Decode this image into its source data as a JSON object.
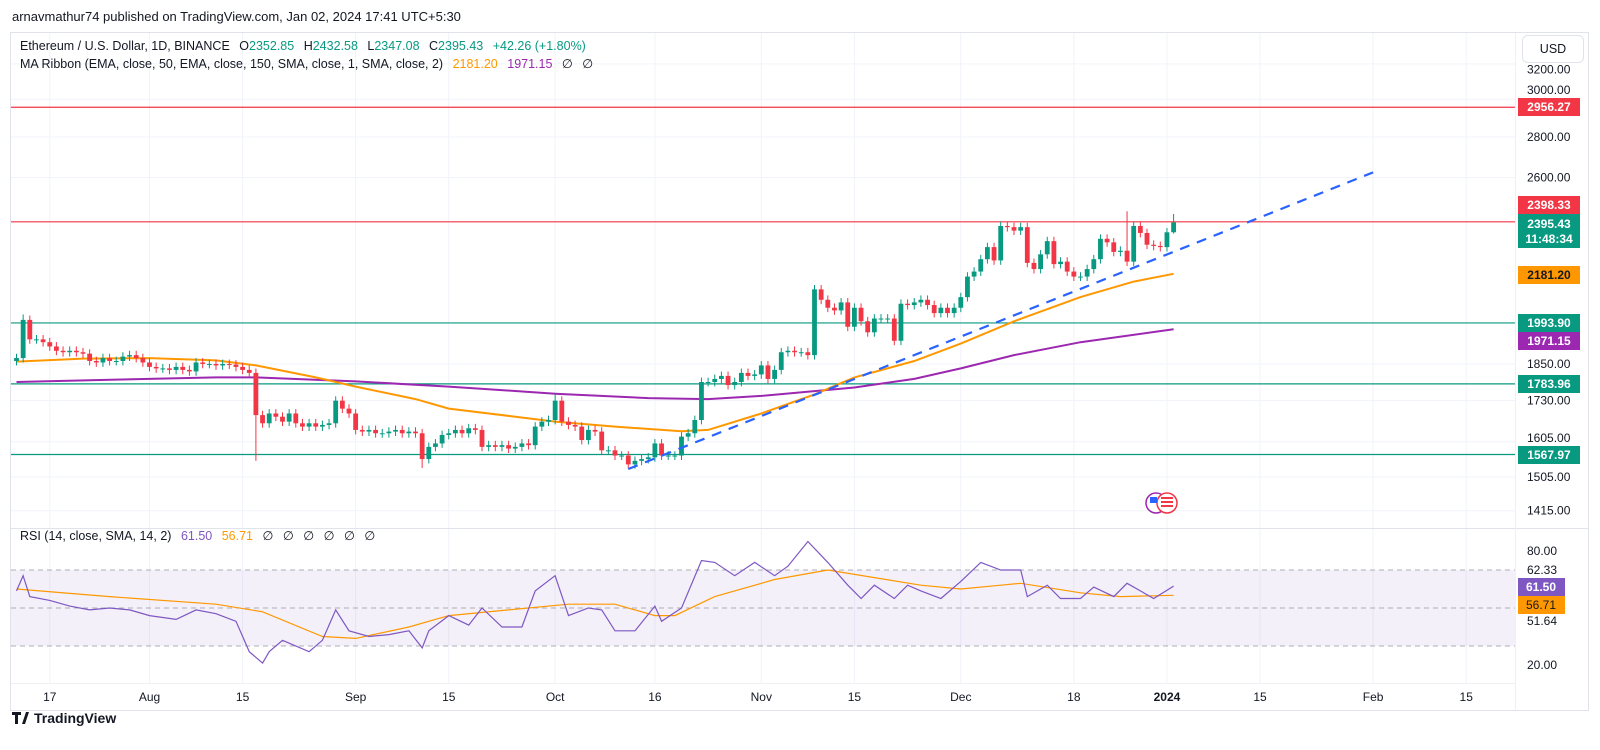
{
  "header": {
    "published": "arnavmathur74 published on TradingView.com, Jan 02, 2024 17:41 UTC+5:30"
  },
  "legend": {
    "symbol": "Ethereum / U.S. Dollar, 1D, BINANCE",
    "o_label": "O",
    "o": "2352.85",
    "h_label": "H",
    "h": "2432.58",
    "l_label": "L",
    "l": "2347.08",
    "c_label": "C",
    "c": "2395.43",
    "change": "+42.26 (+1.80%)",
    "ma_title": "MA Ribbon (EMA, close, 50, EMA, close, 150, SMA, close, 1, SMA, close, 2)",
    "ma1": "2181.20",
    "ma2": "1971.15",
    "ma3": "∅",
    "ma4": "∅",
    "rsi_title": "RSI (14, close, SMA, 14, 2)",
    "rsi_val": "61.50",
    "rsi_sma": "56.71",
    "rsi_na": [
      "∅",
      "∅",
      "∅",
      "∅",
      "∅",
      "∅"
    ]
  },
  "currency_button": "USD",
  "badges": {
    "resistance_top": "2956.27",
    "resistance": "2398.33",
    "last_price": "2395.43",
    "countdown": "11:48:34",
    "ema50": "2181.20",
    "support1": "1993.90",
    "ema150": "1971.15",
    "support2": "1783.96",
    "support3": "1567.97",
    "rsi": "61.50",
    "rsi_sma": "56.71"
  },
  "footer": {
    "brand": "TradingView"
  },
  "colors": {
    "up": "#089981",
    "down": "#f23645",
    "ema50": "#ff9800",
    "ema150": "#9c27b0",
    "rsi": "#7e57c2",
    "trend": "#2962ff"
  },
  "chart_data": {
    "type": "candlestick",
    "title": "Ethereum / U.S. Dollar, 1D, BINANCE",
    "scale": "log",
    "start_date": "2023-07-12",
    "interval": "1D",
    "ylim": [
      1390,
      3280
    ],
    "price_axis_labels": [
      "3200.00",
      "3000.00",
      "2800.00",
      "2600.00",
      "1850.00",
      "1730.00",
      "1605.00",
      "1505.00",
      "1415.00"
    ],
    "price_axis_values": [
      3200,
      3000,
      2800,
      2600,
      1850,
      1730,
      1605,
      1505,
      1415
    ],
    "time_axis": [
      {
        "label": "17",
        "index": 5
      },
      {
        "label": "Aug",
        "index": 20
      },
      {
        "label": "15",
        "index": 34
      },
      {
        "label": "Sep",
        "index": 51
      },
      {
        "label": "15",
        "index": 65
      },
      {
        "label": "Oct",
        "index": 81
      },
      {
        "label": "16",
        "index": 96
      },
      {
        "label": "Nov",
        "index": 112
      },
      {
        "label": "15",
        "index": 126
      },
      {
        "label": "Dec",
        "index": 142
      },
      {
        "label": "18",
        "index": 159
      },
      {
        "label": "2024",
        "index": 173
      },
      {
        "label": "15",
        "index": 187
      },
      {
        "label": "Feb",
        "index": 204
      },
      {
        "label": "15",
        "index": 218
      }
    ],
    "first_open": 1860,
    "closes": [
      1870,
      2005,
      1935,
      1935,
      1925,
      1910,
      1895,
      1890,
      1895,
      1890,
      1885,
      1860,
      1855,
      1870,
      1860,
      1860,
      1875,
      1880,
      1870,
      1855,
      1840,
      1835,
      1835,
      1830,
      1840,
      1830,
      1825,
      1855,
      1850,
      1850,
      1845,
      1850,
      1848,
      1840,
      1830,
      1820,
      1685,
      1660,
      1690,
      1680,
      1665,
      1690,
      1660,
      1650,
      1660,
      1650,
      1655,
      1660,
      1730,
      1705,
      1690,
      1640,
      1635,
      1640,
      1630,
      1630,
      1635,
      1640,
      1630,
      1635,
      1630,
      1555,
      1590,
      1600,
      1625,
      1630,
      1640,
      1630,
      1645,
      1640,
      1590,
      1595,
      1590,
      1595,
      1585,
      1590,
      1600,
      1595,
      1650,
      1665,
      1670,
      1730,
      1665,
      1655,
      1650,
      1610,
      1640,
      1635,
      1580,
      1580,
      1565,
      1565,
      1540,
      1550,
      1555,
      1560,
      1600,
      1565,
      1565,
      1565,
      1620,
      1630,
      1670,
      1790,
      1790,
      1800,
      1810,
      1780,
      1790,
      1820,
      1810,
      1815,
      1845,
      1800,
      1830,
      1890,
      1895,
      1890,
      1890,
      1880,
      2120,
      2080,
      2050,
      2040,
      2070,
      1980,
      2050,
      2000,
      1960,
      2010,
      2010,
      2010,
      1930,
      2065,
      2060,
      2070,
      2080,
      2060,
      2030,
      2050,
      2030,
      2050,
      2090,
      2170,
      2190,
      2240,
      2290,
      2235,
      2380,
      2375,
      2360,
      2375,
      2225,
      2200,
      2260,
      2315,
      2220,
      2230,
      2190,
      2170,
      2170,
      2200,
      2240,
      2325,
      2310,
      2270,
      2275,
      2230,
      2380,
      2350,
      2300,
      2295,
      2290,
      2352.85,
      2395.43
    ],
    "wick_overrides": [
      {
        "index": 1,
        "high": 2025
      },
      {
        "index": 36,
        "low": 1550
      },
      {
        "index": 61,
        "low": 1530
      },
      {
        "index": 81,
        "high": 1750
      },
      {
        "index": 167,
        "high": 2445
      },
      {
        "index": 174,
        "high": 2432.58,
        "low": 2347.08
      }
    ],
    "ema50": [
      [
        0,
        1858
      ],
      [
        10,
        1868
      ],
      [
        20,
        1870
      ],
      [
        30,
        1862
      ],
      [
        36,
        1845
      ],
      [
        45,
        1805
      ],
      [
        51,
        1775
      ],
      [
        60,
        1735
      ],
      [
        65,
        1705
      ],
      [
        75,
        1680
      ],
      [
        81,
        1665
      ],
      [
        90,
        1650
      ],
      [
        100,
        1636
      ],
      [
        104,
        1640
      ],
      [
        112,
        1690
      ],
      [
        120,
        1750
      ],
      [
        126,
        1805
      ],
      [
        135,
        1860
      ],
      [
        142,
        1920
      ],
      [
        150,
        2000
      ],
      [
        160,
        2090
      ],
      [
        168,
        2150
      ],
      [
        174,
        2181.2
      ]
    ],
    "ema150": [
      [
        0,
        1790
      ],
      [
        15,
        1798
      ],
      [
        30,
        1805
      ],
      [
        36,
        1805
      ],
      [
        51,
        1792
      ],
      [
        65,
        1775
      ],
      [
        81,
        1752
      ],
      [
        95,
        1738
      ],
      [
        104,
        1735
      ],
      [
        112,
        1745
      ],
      [
        126,
        1772
      ],
      [
        135,
        1800
      ],
      [
        142,
        1835
      ],
      [
        150,
        1880
      ],
      [
        160,
        1925
      ],
      [
        174,
        1971.15
      ]
    ],
    "horizontal_levels": [
      {
        "price": 2956.27,
        "color": "#f23645"
      },
      {
        "price": 2398.33,
        "color": "#f23645"
      },
      {
        "price": 1993.9,
        "color": "#089981"
      },
      {
        "price": 1783.96,
        "color": "#089981"
      },
      {
        "price": 1567.97,
        "color": "#089981"
      }
    ],
    "trendline": {
      "from": {
        "index": 92,
        "price": 1527
      },
      "to": {
        "index": 204,
        "price": 2625
      },
      "style": "dashed"
    },
    "rsi": {
      "ylim": [
        10,
        90
      ],
      "levels": [
        70,
        50,
        30
      ],
      "axis_labels": [
        "80.00",
        "62.33",
        "51.64",
        "20.00"
      ],
      "axis_values": [
        80,
        62.33,
        51.64,
        20
      ],
      "values": [
        [
          0,
          59
        ],
        [
          1,
          67
        ],
        [
          2,
          56
        ],
        [
          5,
          54
        ],
        [
          8,
          51
        ],
        [
          11,
          49
        ],
        [
          14,
          50
        ],
        [
          17,
          49
        ],
        [
          20,
          46
        ],
        [
          24,
          44
        ],
        [
          27,
          49
        ],
        [
          30,
          47
        ],
        [
          33,
          43
        ],
        [
          35,
          27
        ],
        [
          37,
          21
        ],
        [
          38,
          27
        ],
        [
          40,
          33
        ],
        [
          44,
          27
        ],
        [
          46,
          33
        ],
        [
          48,
          49
        ],
        [
          50,
          38
        ],
        [
          53,
          35
        ],
        [
          56,
          36
        ],
        [
          59,
          38
        ],
        [
          61,
          29
        ],
        [
          62,
          38
        ],
        [
          65,
          46
        ],
        [
          68,
          41
        ],
        [
          70,
          50
        ],
        [
          73,
          40
        ],
        [
          76,
          40
        ],
        [
          78,
          59
        ],
        [
          81,
          67
        ],
        [
          83,
          46
        ],
        [
          86,
          50
        ],
        [
          88,
          49
        ],
        [
          90,
          38
        ],
        [
          93,
          38
        ],
        [
          96,
          51
        ],
        [
          97,
          43
        ],
        [
          100,
          50
        ],
        [
          103,
          75
        ],
        [
          105,
          74
        ],
        [
          108,
          67
        ],
        [
          111,
          74
        ],
        [
          114,
          67
        ],
        [
          116,
          72
        ],
        [
          119,
          85
        ],
        [
          122,
          74
        ],
        [
          125,
          62
        ],
        [
          127,
          55
        ],
        [
          129,
          62
        ],
        [
          132,
          55
        ],
        [
          134,
          62
        ],
        [
          136,
          59
        ],
        [
          139,
          55
        ],
        [
          142,
          64
        ],
        [
          145,
          74
        ],
        [
          148,
          70
        ],
        [
          151,
          70
        ],
        [
          152,
          56
        ],
        [
          155,
          62
        ],
        [
          157,
          55
        ],
        [
          160,
          55
        ],
        [
          162,
          61
        ],
        [
          165,
          56
        ],
        [
          167,
          63
        ],
        [
          169,
          59
        ],
        [
          171,
          55
        ],
        [
          174,
          61.5
        ]
      ],
      "sma": [
        [
          0,
          60
        ],
        [
          14,
          56
        ],
        [
          30,
          52
        ],
        [
          37,
          48
        ],
        [
          46,
          35
        ],
        [
          51,
          34
        ],
        [
          59,
          40
        ],
        [
          65,
          46
        ],
        [
          74,
          49
        ],
        [
          83,
          52
        ],
        [
          90,
          52
        ],
        [
          96,
          46
        ],
        [
          99,
          46
        ],
        [
          105,
          56
        ],
        [
          114,
          65
        ],
        [
          122,
          70
        ],
        [
          129,
          66
        ],
        [
          136,
          62
        ],
        [
          142,
          60
        ],
        [
          148,
          62
        ],
        [
          151,
          63
        ],
        [
          160,
          58
        ],
        [
          166,
          56
        ],
        [
          174,
          56.71
        ]
      ]
    }
  }
}
